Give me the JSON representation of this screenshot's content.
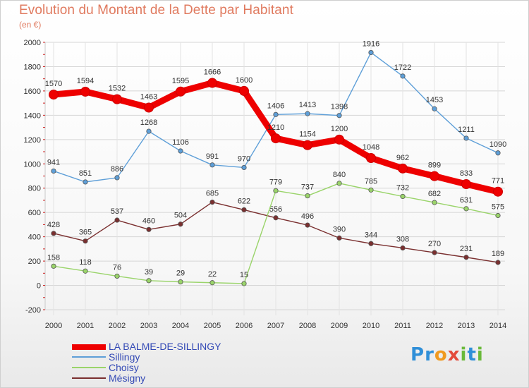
{
  "title": "Evolution du Montant de la Dette par Habitant",
  "subtitle": "(en €)",
  "logo": "Proxiti",
  "chart_data": {
    "type": "line",
    "x": [
      "2000",
      "2001",
      "2002",
      "2003",
      "2004",
      "2005",
      "2006",
      "2007",
      "2008",
      "2009",
      "2010",
      "2011",
      "2012",
      "2013",
      "2014"
    ],
    "ylim": [
      -200,
      2000
    ],
    "yticks": [
      -200,
      0,
      200,
      400,
      600,
      800,
      1000,
      1200,
      1400,
      1600,
      1800,
      2000
    ],
    "grid": true,
    "legend_position": "bottom-left",
    "series": [
      {
        "name": "LA BALME-DE-SILLINGY",
        "color": "#ee0000",
        "values": [
          1570,
          1594,
          1532,
          1463,
          1595,
          1666,
          1600,
          1210,
          1154,
          1200,
          1048,
          962,
          899,
          833,
          771
        ]
      },
      {
        "name": "Sillingy",
        "color": "#5e9fd8",
        "values": [
          941,
          851,
          886,
          1268,
          1106,
          991,
          970,
          1406,
          1413,
          1398,
          1916,
          1722,
          1453,
          1211,
          1090
        ]
      },
      {
        "name": "Choisy",
        "color": "#9ad46a",
        "values": [
          158,
          118,
          76,
          39,
          29,
          22,
          15,
          779,
          737,
          840,
          785,
          732,
          682,
          631,
          575
        ]
      },
      {
        "name": "Mésigny",
        "color": "#7a2f2f",
        "values": [
          428,
          365,
          537,
          460,
          504,
          685,
          622,
          556,
          496,
          390,
          344,
          308,
          270,
          231,
          189
        ]
      }
    ]
  }
}
